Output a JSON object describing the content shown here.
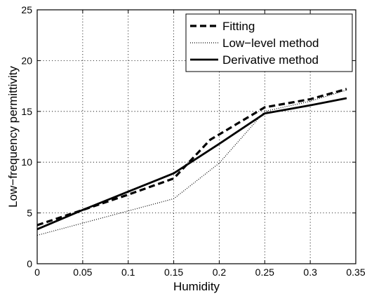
{
  "chart_data": {
    "type": "line",
    "title": "",
    "xlabel": "Humidity",
    "ylabel": "Low−frequency permittivity",
    "xlim": [
      0,
      0.35
    ],
    "ylim": [
      0,
      25
    ],
    "xticks": [
      0,
      0.05,
      0.1,
      0.15,
      0.2,
      0.25,
      0.3,
      0.35
    ],
    "xtick_labels": [
      "0",
      "0.05",
      "0.1",
      "0.15",
      "0.2",
      "0.25",
      "0.3",
      "0.35"
    ],
    "yticks": [
      0,
      5,
      10,
      15,
      20,
      25
    ],
    "ytick_labels": [
      "0",
      "5",
      "10",
      "15",
      "20",
      "25"
    ],
    "grid": true,
    "legend_position": "top-right",
    "series": [
      {
        "name": "Fitting",
        "style": "dashed",
        "x": [
          0,
          0.05,
          0.1,
          0.15,
          0.19,
          0.25,
          0.3,
          0.34
        ],
        "y": [
          3.8,
          5.3,
          6.8,
          8.4,
          12.2,
          15.4,
          16.2,
          17.2
        ]
      },
      {
        "name": "Low−level method",
        "style": "dotted",
        "x": [
          0,
          0.05,
          0.1,
          0.15,
          0.2,
          0.25,
          0.3,
          0.34
        ],
        "y": [
          2.8,
          4.0,
          5.2,
          6.4,
          9.9,
          15.0,
          16.0,
          17.1
        ]
      },
      {
        "name": "Derivative method",
        "style": "solid",
        "x": [
          0,
          0.05,
          0.1,
          0.15,
          0.2,
          0.25,
          0.3,
          0.34
        ],
        "y": [
          3.4,
          5.3,
          7.1,
          8.9,
          11.8,
          14.8,
          15.6,
          16.3
        ]
      }
    ]
  }
}
